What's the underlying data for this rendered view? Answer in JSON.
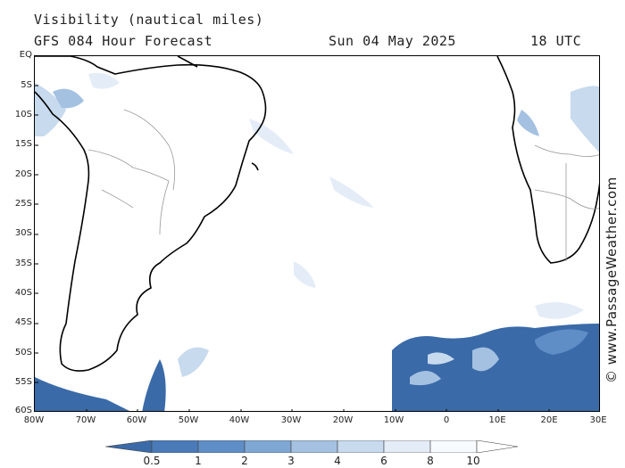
{
  "header": {
    "title": "Visibility (nautical miles)",
    "subtitle": "GFS 084 Hour Forecast",
    "date": "Sun 04 May 2025",
    "time": "18 UTC"
  },
  "copyright": "© www.PassageWeather.com",
  "map": {
    "lat_labels": [
      "EQ",
      "5S",
      "10S",
      "15S",
      "20S",
      "25S",
      "30S",
      "35S",
      "40S",
      "45S",
      "50S",
      "55S",
      "60S"
    ],
    "lon_labels": [
      "80W",
      "70W",
      "60W",
      "50W",
      "40W",
      "30W",
      "20W",
      "10W",
      "0",
      "10E",
      "20E",
      "30E"
    ]
  },
  "legend": {
    "labels": [
      "0.5",
      "1",
      "2",
      "3",
      "4",
      "6",
      "8",
      "10"
    ],
    "colors": [
      "#3a6aa8",
      "#4a7ab8",
      "#5f8ec6",
      "#7fa7d3",
      "#a4c1e1",
      "#c7daee",
      "#e4edf7",
      "#f8fbfe",
      "#ffffff"
    ]
  }
}
